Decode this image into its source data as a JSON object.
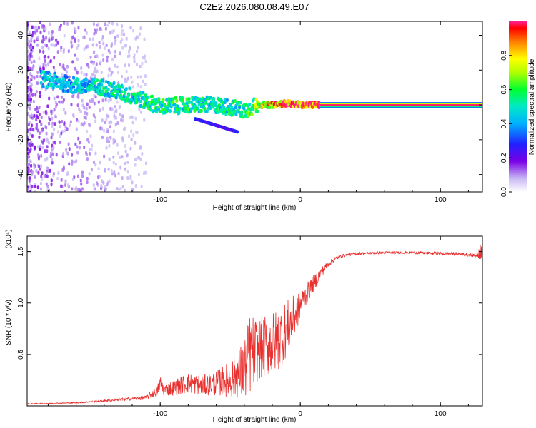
{
  "title": "C2E2.2026.080.08.49.E07",
  "chart_data": [
    {
      "type": "heatmap",
      "title": "C2E2.2026.080.08.49.E07",
      "xlabel": "Height of straight line (km)",
      "ylabel": "Frequency (Hz)",
      "xlim": [
        -195,
        130
      ],
      "ylim": [
        -50,
        48
      ],
      "xticks": [
        -100,
        0,
        100
      ],
      "xtick_labels": [
        "-100",
        "0",
        "100"
      ],
      "yticks": [
        -40,
        -20,
        0,
        20,
        40
      ],
      "ytick_labels": [
        "-40",
        "-20",
        "0",
        "20",
        "40"
      ],
      "colorbar": {
        "label": "Normalized spectral amplitude",
        "range": [
          0,
          1
        ],
        "ticks": [
          0.0,
          0.2,
          0.4,
          0.6,
          0.8
        ],
        "tick_labels": [
          "0.0",
          "0.2",
          "0.4",
          "0.6",
          "0.8"
        ]
      },
      "ridge": {
        "description": "dominant frequency track",
        "points": [
          [
            -185,
            15
          ],
          [
            -160,
            11
          ],
          [
            -140,
            10
          ],
          [
            -120,
            5
          ],
          [
            -100,
            -1
          ],
          [
            -80,
            0
          ],
          [
            -60,
            0
          ],
          [
            -40,
            -3
          ],
          [
            -30,
            0
          ],
          [
            -20,
            0
          ],
          [
            -10,
            1
          ],
          [
            0,
            0
          ],
          [
            15,
            0
          ],
          [
            130,
            0
          ]
        ],
        "amplitude": [
          0.45,
          0.45,
          0.5,
          0.5,
          0.55,
          0.55,
          0.5,
          0.55,
          0.7,
          0.85,
          0.95,
          0.97,
          0.99,
          1.0
        ]
      }
    },
    {
      "type": "line",
      "xlabel": "Height of straight line (km)",
      "ylabel": "SNR (10 * v/v)",
      "y_scale_label": "(x10⁴)",
      "xlim": [
        -195,
        130
      ],
      "ylim": [
        0,
        1.65
      ],
      "xticks": [
        -100,
        0,
        100
      ],
      "xtick_labels": [
        "-100",
        "0",
        "100"
      ],
      "yticks": [
        0.5,
        1.0,
        1.5
      ],
      "ytick_labels": [
        "0.5",
        "1.0",
        "1.5"
      ],
      "series": [
        {
          "name": "SNR",
          "color": "#e8312f",
          "x": [
            -195,
            -160,
            -130,
            -110,
            -102,
            -100,
            -97,
            -90,
            -80,
            -70,
            -60,
            -50,
            -40,
            -36,
            -30,
            -20,
            -15,
            -10,
            -5,
            0,
            5,
            10,
            15,
            20,
            25,
            30,
            40,
            60,
            80,
            100,
            110,
            120,
            126,
            128,
            130
          ],
          "y": [
            0.02,
            0.03,
            0.06,
            0.08,
            0.15,
            0.22,
            0.15,
            0.18,
            0.22,
            0.2,
            0.22,
            0.26,
            0.35,
            0.5,
            0.55,
            0.6,
            0.65,
            0.75,
            0.85,
            0.98,
            1.1,
            1.2,
            1.3,
            1.38,
            1.43,
            1.46,
            1.48,
            1.49,
            1.49,
            1.48,
            1.48,
            1.47,
            1.46,
            1.5,
            1.52
          ],
          "noise_amplitude": [
            0.004,
            0.005,
            0.012,
            0.02,
            0.05,
            0.08,
            0.06,
            0.08,
            0.1,
            0.1,
            0.12,
            0.18,
            0.3,
            0.4,
            0.3,
            0.32,
            0.3,
            0.28,
            0.22,
            0.14,
            0.1,
            0.08,
            0.05,
            0.03,
            0.02,
            0.015,
            0.012,
            0.012,
            0.012,
            0.015,
            0.015,
            0.015,
            0.02,
            0.08,
            0.1
          ]
        }
      ]
    }
  ]
}
